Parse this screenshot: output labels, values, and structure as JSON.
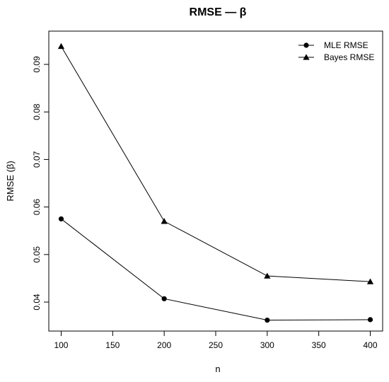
{
  "chart_data": {
    "type": "line",
    "title": "RMSE — β",
    "xlabel": "n",
    "ylabel": "RMSE (β)",
    "x": [
      100,
      200,
      300,
      400
    ],
    "xticks": [
      100,
      150,
      200,
      250,
      300,
      350,
      400
    ],
    "yticks": [
      0.04,
      0.05,
      0.06,
      0.07,
      0.08,
      0.09
    ],
    "xlim": [
      88,
      412
    ],
    "ylim": [
      0.0339,
      0.097
    ],
    "grid": false,
    "legend_position": "top-right",
    "series": [
      {
        "name": "MLE RMSE",
        "marker": "circle",
        "color": "#000000",
        "values": [
          0.0575,
          0.0407,
          0.0362,
          0.0363
        ]
      },
      {
        "name": "Bayes RMSE",
        "marker": "triangle",
        "color": "#000000",
        "values": [
          0.0938,
          0.057,
          0.0455,
          0.0443
        ]
      }
    ]
  }
}
